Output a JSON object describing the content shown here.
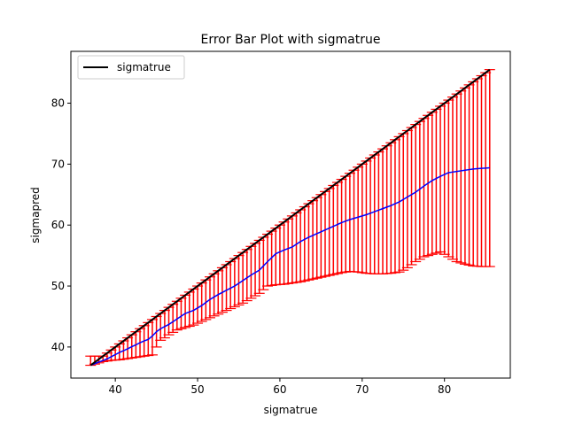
{
  "chart_data": {
    "type": "line",
    "title": "Error Bar Plot with sigmatrue",
    "xlabel": "sigmatrue",
    "ylabel": "sigmapred",
    "xlim": [
      34.6,
      88.0
    ],
    "ylim": [
      34.9,
      88.5
    ],
    "xticks": [
      40,
      50,
      60,
      70,
      80
    ],
    "yticks": [
      40,
      50,
      60,
      70,
      80
    ],
    "grid": false,
    "legend": {
      "position": "upper-left",
      "entries": [
        "sigmatrue"
      ]
    },
    "x": [
      37.0,
      37.5,
      38.0,
      38.5,
      39.0,
      39.5,
      40.0,
      40.5,
      41.0,
      41.5,
      42.0,
      42.5,
      43.0,
      43.5,
      44.0,
      44.5,
      45.0,
      45.5,
      46.0,
      46.5,
      47.0,
      47.5,
      48.0,
      48.5,
      49.0,
      49.5,
      50.0,
      50.5,
      51.0,
      51.5,
      52.0,
      52.5,
      53.0,
      53.5,
      54.0,
      54.5,
      55.0,
      55.5,
      56.0,
      56.5,
      57.0,
      57.5,
      58.0,
      58.5,
      59.0,
      59.5,
      60.0,
      60.5,
      61.0,
      61.5,
      62.0,
      62.5,
      63.0,
      63.5,
      64.0,
      64.5,
      65.0,
      65.5,
      66.0,
      66.5,
      67.0,
      67.5,
      68.0,
      68.5,
      69.0,
      69.5,
      70.0,
      70.5,
      71.0,
      71.5,
      72.0,
      72.5,
      73.0,
      73.5,
      74.0,
      74.5,
      75.0,
      75.5,
      76.0,
      76.5,
      77.0,
      77.5,
      78.0,
      78.5,
      79.0,
      79.5,
      80.0,
      80.5,
      81.0,
      81.5,
      82.0,
      82.5,
      83.0,
      83.5,
      84.0,
      84.5,
      85.0,
      85.5
    ],
    "series": [
      {
        "name": "sigmatrue",
        "color": "#000000",
        "style": "black-line",
        "values": [
          37.0,
          37.5,
          38.0,
          38.5,
          39.0,
          39.5,
          40.0,
          40.5,
          41.0,
          41.5,
          42.0,
          42.5,
          43.0,
          43.5,
          44.0,
          44.5,
          45.0,
          45.5,
          46.0,
          46.5,
          47.0,
          47.5,
          48.0,
          48.5,
          49.0,
          49.5,
          50.0,
          50.5,
          51.0,
          51.5,
          52.0,
          52.5,
          53.0,
          53.5,
          54.0,
          54.5,
          55.0,
          55.5,
          56.0,
          56.5,
          57.0,
          57.5,
          58.0,
          58.5,
          59.0,
          59.5,
          60.0,
          60.5,
          61.0,
          61.5,
          62.0,
          62.5,
          63.0,
          63.5,
          64.0,
          64.5,
          65.0,
          65.5,
          66.0,
          66.5,
          67.0,
          67.5,
          68.0,
          68.5,
          69.0,
          69.5,
          70.0,
          70.5,
          71.0,
          71.5,
          72.0,
          72.5,
          73.0,
          73.5,
          74.0,
          74.5,
          75.0,
          75.5,
          76.0,
          76.5,
          77.0,
          77.5,
          78.0,
          78.5,
          79.0,
          79.5,
          80.0,
          80.5,
          81.0,
          81.5,
          82.0,
          82.5,
          83.0,
          83.5,
          84.0,
          84.5,
          85.0,
          85.5
        ]
      },
      {
        "color": "#0000ff",
        "style": "blue-line-with-error-bars",
        "error_color": "#ff0000",
        "values": [
          37.0,
          37.26,
          37.52,
          37.78,
          38.05,
          38.4,
          38.75,
          39.1,
          39.4,
          39.7,
          40.05,
          40.35,
          40.7,
          41.0,
          41.25,
          41.8,
          42.5,
          43.0,
          43.35,
          43.7,
          44.15,
          44.6,
          45.05,
          45.5,
          45.75,
          46.0,
          46.4,
          46.8,
          47.3,
          47.8,
          48.2,
          48.6,
          48.95,
          49.3,
          49.65,
          50.0,
          50.45,
          50.9,
          51.35,
          51.8,
          52.2,
          52.6,
          53.3,
          54.0,
          54.65,
          55.3,
          55.6,
          55.9,
          56.15,
          56.4,
          56.85,
          57.3,
          57.65,
          58.0,
          58.3,
          58.6,
          58.9,
          59.2,
          59.5,
          59.8,
          60.1,
          60.4,
          60.65,
          60.9,
          61.1,
          61.3,
          61.5,
          61.7,
          61.95,
          62.2,
          62.45,
          62.7,
          62.95,
          63.2,
          63.5,
          63.8,
          64.2,
          64.6,
          65.0,
          65.4,
          65.9,
          66.4,
          66.85,
          67.3,
          67.65,
          68.0,
          68.3,
          68.6,
          68.7,
          68.8,
          68.9,
          69.0,
          69.1,
          69.2,
          69.25,
          69.3,
          69.35,
          69.4
        ],
        "lower": [
          37.0,
          37.2,
          37.4,
          37.6,
          37.7,
          37.8,
          37.85,
          37.9,
          38.0,
          38.1,
          38.2,
          38.3,
          38.4,
          38.5,
          38.6,
          38.7,
          40.0,
          41.1,
          41.5,
          42.0,
          42.4,
          42.8,
          43.0,
          43.2,
          43.4,
          43.6,
          43.9,
          44.2,
          44.5,
          44.8,
          45.1,
          45.4,
          45.7,
          46.0,
          46.3,
          46.6,
          46.9,
          47.2,
          47.6,
          48.0,
          48.4,
          48.8,
          49.4,
          50.0,
          50.1,
          50.2,
          50.25,
          50.3,
          50.4,
          50.5,
          50.6,
          50.7,
          50.85,
          51.0,
          51.15,
          51.3,
          51.45,
          51.6,
          51.75,
          51.9,
          52.05,
          52.2,
          52.3,
          52.4,
          52.35,
          52.3,
          52.2,
          52.1,
          52.05,
          52.0,
          52.0,
          52.0,
          52.05,
          52.1,
          52.2,
          52.3,
          52.6,
          53.0,
          53.5,
          54.0,
          54.4,
          54.8,
          55.0,
          55.2,
          55.4,
          55.6,
          55.2,
          54.8,
          54.4,
          54.0,
          53.8,
          53.6,
          53.45,
          53.3,
          53.25,
          53.2,
          53.2,
          53.2
        ],
        "upper": [
          38.5,
          38.5,
          38.5,
          38.5,
          39.0,
          39.5,
          40.0,
          40.5,
          41.0,
          41.5,
          42.0,
          42.5,
          43.0,
          43.5,
          44.0,
          44.5,
          45.0,
          45.5,
          46.0,
          46.5,
          47.0,
          47.5,
          48.0,
          48.5,
          49.0,
          49.5,
          50.0,
          50.5,
          51.0,
          51.5,
          52.0,
          52.5,
          53.0,
          53.5,
          54.0,
          54.5,
          55.0,
          55.5,
          56.0,
          56.5,
          57.0,
          57.5,
          58.0,
          58.5,
          59.0,
          59.5,
          60.0,
          60.5,
          61.0,
          61.5,
          62.0,
          62.5,
          63.0,
          63.5,
          64.0,
          64.5,
          65.0,
          65.5,
          66.0,
          66.5,
          67.0,
          67.5,
          68.0,
          68.5,
          69.0,
          69.5,
          70.0,
          70.5,
          71.0,
          71.5,
          72.0,
          72.5,
          73.0,
          73.5,
          74.0,
          74.5,
          75.0,
          75.5,
          76.0,
          76.5,
          77.0,
          77.5,
          78.0,
          78.5,
          79.0,
          79.5,
          80.0,
          80.5,
          81.0,
          81.5,
          82.0,
          82.5,
          83.0,
          83.5,
          84.0,
          84.5,
          85.0,
          85.5
        ]
      }
    ]
  }
}
